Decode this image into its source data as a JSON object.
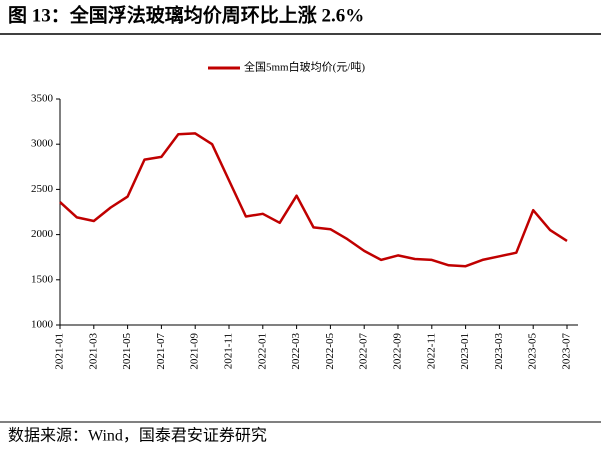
{
  "chart_data": {
    "type": "line",
    "title": "图 13：全国浮法玻璃均价周环比上涨 2.6%",
    "source": "数据来源：Wind，国泰君安证券研究",
    "x": [
      "2021-01",
      "2021-02",
      "2021-03",
      "2021-04",
      "2021-05",
      "2021-06",
      "2021-07",
      "2021-08",
      "2021-09",
      "2021-10",
      "2021-11",
      "2021-12",
      "2022-01",
      "2022-02",
      "2022-03",
      "2022-04",
      "2022-05",
      "2022-06",
      "2022-07",
      "2022-08",
      "2022-09",
      "2022-10",
      "2022-11",
      "2022-12",
      "2023-01",
      "2023-02",
      "2023-03",
      "2023-04",
      "2023-05",
      "2023-06",
      "2023-07"
    ],
    "series": [
      {
        "name": "全国5mm白玻均价(元/吨)",
        "color": "#c00000",
        "values": [
          2360,
          2190,
          2150,
          2300,
          2420,
          2830,
          2860,
          3110,
          3120,
          3000,
          2600,
          2200,
          2230,
          2130,
          2430,
          2080,
          2060,
          1950,
          1820,
          1720,
          1770,
          1730,
          1720,
          1660,
          1650,
          1720,
          1760,
          1800,
          2270,
          2050,
          1930
        ]
      }
    ],
    "xticks": [
      "2021-01",
      "2021-03",
      "2021-05",
      "2021-07",
      "2021-09",
      "2021-11",
      "2022-01",
      "2022-03",
      "2022-05",
      "2022-07",
      "2022-09",
      "2022-11",
      "2023-01",
      "2023-03",
      "2023-05",
      "2023-07"
    ],
    "ylim": [
      1000,
      3500
    ],
    "yticks": [
      1000,
      1500,
      2000,
      2500,
      3000,
      3500
    ],
    "grid": false,
    "legend": "top"
  }
}
